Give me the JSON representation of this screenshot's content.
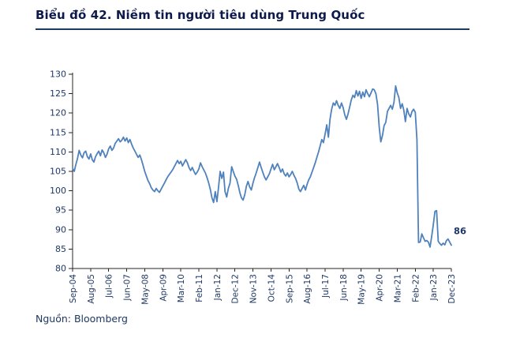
{
  "page": {
    "title": "Biểu đồ 42. Niềm tin người tiêu dùng Trung Quốc",
    "source": "Nguồn: Bloomberg"
  },
  "colors": {
    "line": "#4F81BD",
    "tick_text": "#1F3864",
    "title_text": "#0D1A4A",
    "axis": "#262626"
  },
  "chart_data": {
    "type": "line",
    "title": "Biểu đồ 42. Niềm tin người tiêu dùng Trung Quốc",
    "source": "Nguồn: Bloomberg",
    "ylabel": "",
    "xlabel": "",
    "ylim": [
      80,
      130
    ],
    "ytick_step": 5,
    "y_ticks": [
      80,
      85,
      90,
      95,
      100,
      105,
      110,
      115,
      120,
      125,
      130
    ],
    "grid": false,
    "legend": "none",
    "x_tick_labels": [
      "Sep-04",
      "Aug-05",
      "Jul-06",
      "Jun-07",
      "May-08",
      "Apr-09",
      "Mar-10",
      "Feb-11",
      "Jan-12",
      "Dec-12",
      "Nov-13",
      "Oct-14",
      "Sep-15",
      "Aug-16",
      "Jul-17",
      "Jun-18",
      "May-19",
      "Apr-20",
      "Mar-21",
      "Feb-22",
      "Jan-23",
      "Dec-23"
    ],
    "x_tick_step": 11,
    "end_label": "86",
    "series": [
      {
        "name": "Niềm tin người tiêu dùng Trung Quốc",
        "values": [
          105.8,
          105.0,
          106.8,
          108.3,
          110.4,
          109.2,
          108.5,
          109.8,
          110.2,
          108.8,
          108.2,
          109.5,
          108.0,
          107.4,
          108.8,
          109.6,
          110.2,
          109.0,
          110.5,
          109.8,
          108.6,
          109.4,
          110.8,
          111.5,
          110.4,
          111.0,
          112.2,
          112.8,
          113.4,
          112.6,
          113.0,
          113.8,
          112.8,
          113.6,
          112.4,
          113.2,
          112.0,
          111.0,
          110.2,
          109.4,
          108.6,
          109.2,
          108.0,
          106.5,
          105.0,
          103.8,
          102.6,
          101.8,
          100.8,
          100.2,
          99.8,
          100.6,
          100.0,
          99.6,
          100.4,
          101.2,
          102.0,
          102.8,
          103.6,
          104.2,
          104.8,
          105.4,
          106.2,
          107.0,
          107.8,
          107.0,
          107.6,
          106.4,
          107.2,
          108.0,
          107.2,
          106.0,
          105.2,
          106.0,
          105.0,
          104.2,
          104.8,
          105.6,
          107.2,
          106.2,
          105.4,
          104.6,
          103.4,
          102.0,
          100.4,
          98.2,
          97.0,
          99.8,
          97.2,
          100.8,
          105.0,
          103.2,
          104.8,
          99.8,
          98.4,
          100.6,
          102.0,
          106.2,
          105.0,
          103.8,
          103.0,
          101.4,
          99.6,
          98.2,
          97.6,
          99.0,
          101.2,
          102.4,
          101.0,
          100.2,
          102.0,
          103.4,
          104.6,
          106.0,
          107.4,
          106.0,
          104.8,
          103.6,
          102.8,
          103.6,
          104.4,
          105.6,
          106.8,
          105.4,
          106.2,
          107.0,
          106.0,
          104.8,
          105.6,
          104.4,
          103.8,
          104.6,
          103.6,
          104.2,
          105.0,
          104.0,
          103.2,
          102.0,
          100.4,
          99.8,
          100.6,
          101.4,
          100.2,
          101.6,
          102.8,
          103.6,
          104.8,
          106.0,
          107.2,
          108.6,
          110.0,
          111.6,
          113.2,
          112.4,
          114.6,
          117.0,
          113.8,
          118.4,
          121.0,
          122.6,
          122.0,
          123.2,
          122.0,
          121.2,
          122.6,
          121.4,
          119.6,
          118.4,
          119.8,
          121.6,
          123.4,
          124.6,
          124.0,
          125.8,
          124.4,
          125.6,
          123.8,
          125.4,
          124.2,
          126.0,
          125.0,
          124.2,
          125.2,
          126.2,
          126.0,
          125.0,
          122.2,
          116.4,
          112.6,
          114.2,
          116.8,
          117.6,
          120.4,
          121.2,
          122.0,
          121.0,
          122.8,
          127.0,
          125.2,
          124.0,
          121.2,
          122.4,
          120.8,
          117.8,
          121.2,
          119.8,
          119.0,
          120.4,
          121.0,
          120.2,
          113.2,
          86.7,
          86.8,
          88.9,
          87.9,
          87.0,
          87.2,
          86.8,
          85.5,
          88.3,
          91.2,
          94.7,
          94.9,
          87.0,
          86.4,
          86.0,
          86.5,
          86.1,
          87.2,
          87.6,
          86.8,
          86.0
        ]
      }
    ]
  }
}
